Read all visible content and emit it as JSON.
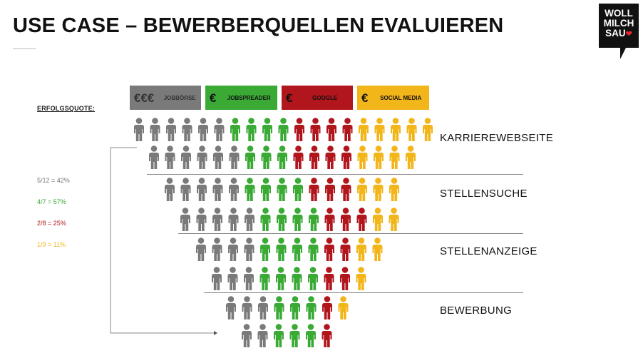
{
  "title": "USE CASE – BEWERBERQUELLEN EVALUIEREN",
  "logo": {
    "lines": [
      "WOLL",
      "MILCH",
      "SAU"
    ],
    "heart_color": "#e3262b"
  },
  "colors": {
    "jobboerse": "#7a7a7a",
    "jobspreader": "#3aaa35",
    "google": "#b0161c",
    "social": "#f2b51a"
  },
  "sources": [
    {
      "label": "JOBBÖRSE",
      "euro": "€€€",
      "color": "#7a7a7a",
      "text_color": "#333333"
    },
    {
      "label": "JOBSPREADER",
      "euro": "€",
      "color": "#3aaa35",
      "text_color": "#111111"
    },
    {
      "label": "GOOGLE",
      "euro": "€",
      "color": "#b0161c",
      "text_color": "#111111"
    },
    {
      "label": "SOCIAL MEDIA",
      "euro": "€",
      "color": "#f2b51a",
      "text_color": "#111111"
    }
  ],
  "erfolgsquote_label": "ERFOLGSQUOTE:",
  "quotes": [
    {
      "text": "5/12 = 42%",
      "color": "#777777"
    },
    {
      "text": "4/7 = 57%",
      "color": "#3aaa35"
    },
    {
      "text": "2/8 = 25%",
      "color": "#b0161c"
    },
    {
      "text": "1/9 = 11%",
      "color": "#f2b51a"
    }
  ],
  "stages": [
    "KARRIEREWEBSEITE",
    "STELLENSUCHE",
    "STELLENANZEIGE",
    "BEWERBUNG"
  ],
  "people_rows": [
    {
      "gray": 6,
      "green": 4,
      "red": 4,
      "yellow": 5
    },
    {
      "gray": 6,
      "green": 3,
      "red": 4,
      "yellow": 4
    },
    {
      "gray": 5,
      "green": 4,
      "red": 3,
      "yellow": 3
    },
    {
      "gray": 5,
      "green": 4,
      "red": 3,
      "yellow": 2
    },
    {
      "gray": 4,
      "green": 4,
      "red": 2,
      "yellow": 2
    },
    {
      "gray": 3,
      "green": 4,
      "red": 2,
      "yellow": 1
    },
    {
      "gray": 3,
      "green": 3,
      "red": 1,
      "yellow": 1
    },
    {
      "gray": 2,
      "green": 3,
      "red": 1,
      "yellow": 0
    }
  ]
}
